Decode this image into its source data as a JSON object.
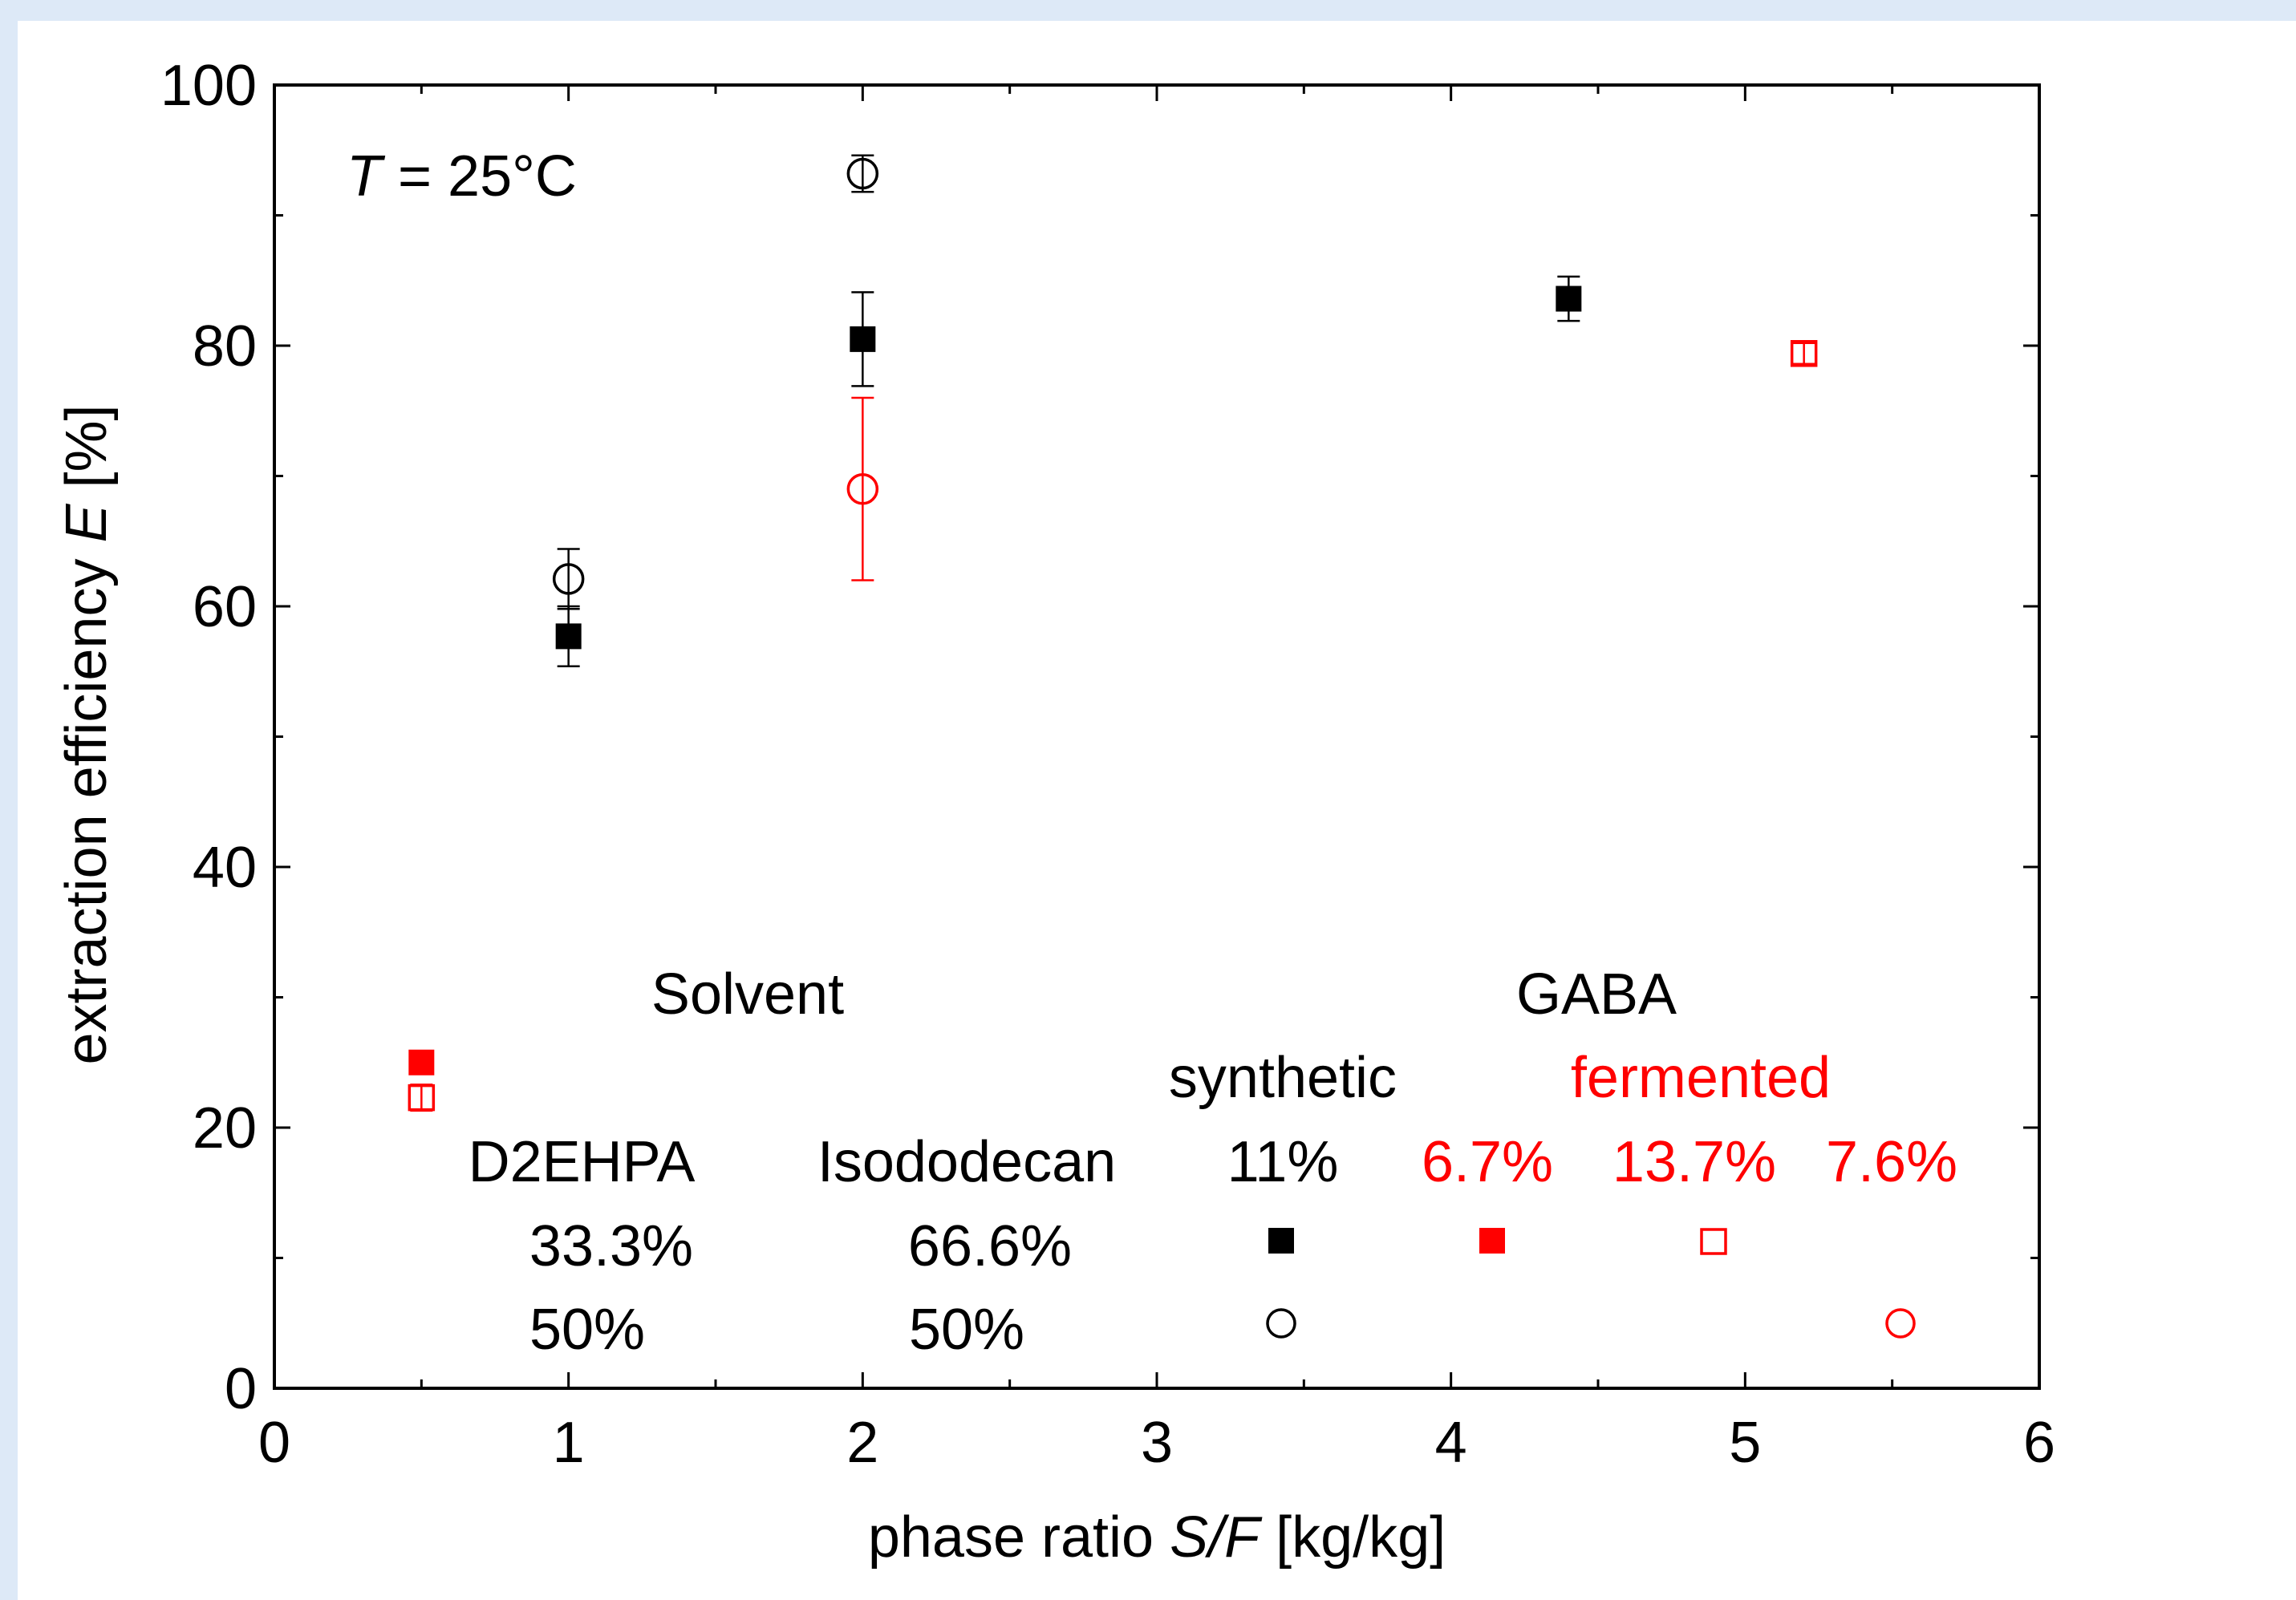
{
  "chart_data": {
    "type": "scatter",
    "xlabel_prefix": "phase ratio ",
    "xlabel_var": "S/F",
    "xlabel_unit": " [kg/kg]",
    "ylabel_prefix": "extraction efficiency ",
    "ylabel_var": "E",
    "ylabel_unit": " [%]",
    "xlim": [
      0,
      6
    ],
    "ylim": [
      0,
      100
    ],
    "x_ticks": [
      0,
      1,
      2,
      3,
      4,
      5,
      6
    ],
    "y_ticks": [
      0,
      20,
      40,
      60,
      80,
      100
    ],
    "x_tick_labels": [
      "0",
      "1",
      "2",
      "3",
      "4",
      "5",
      "6"
    ],
    "y_tick_labels": [
      "0",
      "20",
      "40",
      "60",
      "80",
      "100"
    ],
    "annotation_var": "T",
    "annotation_value": " = 25°C",
    "grid": false,
    "series": [
      {
        "solvent_d2ehpa": "33.3%",
        "solvent_isododecan": "66.6%",
        "gaba": "synthetic 11%",
        "marker": "filled-square",
        "color": "#000000",
        "points": [
          {
            "x": 1,
            "y": 57.7,
            "err": 2.3
          },
          {
            "x": 2,
            "y": 80.5,
            "err": 3.6
          },
          {
            "x": 4.4,
            "y": 83.6,
            "err": 1.7
          }
        ]
      },
      {
        "solvent_d2ehpa": "50%",
        "solvent_isododecan": "50%",
        "gaba": "synthetic 11%",
        "marker": "open-circle",
        "color": "#000000",
        "points": [
          {
            "x": 1,
            "y": 62.1,
            "err": 2.3
          },
          {
            "x": 2,
            "y": 93.2,
            "err": 1.4
          }
        ]
      },
      {
        "solvent_d2ehpa": "33.3%",
        "solvent_isododecan": "66.6%",
        "gaba": "fermented 6.7%",
        "marker": "filled-square",
        "color": "#ff0000",
        "points": [
          {
            "x": 0.5,
            "y": 25.0
          }
        ]
      },
      {
        "solvent_d2ehpa": "33.3%",
        "solvent_isododecan": "66.6%",
        "gaba": "fermented 13.7%",
        "marker": "open-square",
        "color": "#ff0000",
        "points": [
          {
            "x": 0.5,
            "y": 22.3,
            "err": 1.0
          },
          {
            "x": 5.2,
            "y": 79.4,
            "err": 0.8
          }
        ]
      },
      {
        "solvent_d2ehpa": "50%",
        "solvent_isododecan": "50%",
        "gaba": "fermented 7.6%",
        "marker": "open-circle",
        "color": "#ff0000",
        "points": [
          {
            "x": 2,
            "y": 69.0,
            "err": 7.0
          }
        ]
      }
    ],
    "legend": {
      "solvent_header": "Solvent",
      "gaba_header": "GABA",
      "synthetic_label": "synthetic",
      "fermented_label": "fermented",
      "col_d2ehpa": "D2EHPA",
      "col_isododecan": "Isododecan",
      "col_synth11": "11%",
      "col_ferm67": "6.7%",
      "col_ferm137": "13.7%",
      "col_ferm76": "7.6%",
      "row1_d2ehpa": "33.3%",
      "row1_iso": "66.6%",
      "row2_d2ehpa": "50%",
      "row2_iso": "50%"
    },
    "colors": {
      "synthetic": "#000000",
      "fermented": "#ff0000"
    }
  }
}
